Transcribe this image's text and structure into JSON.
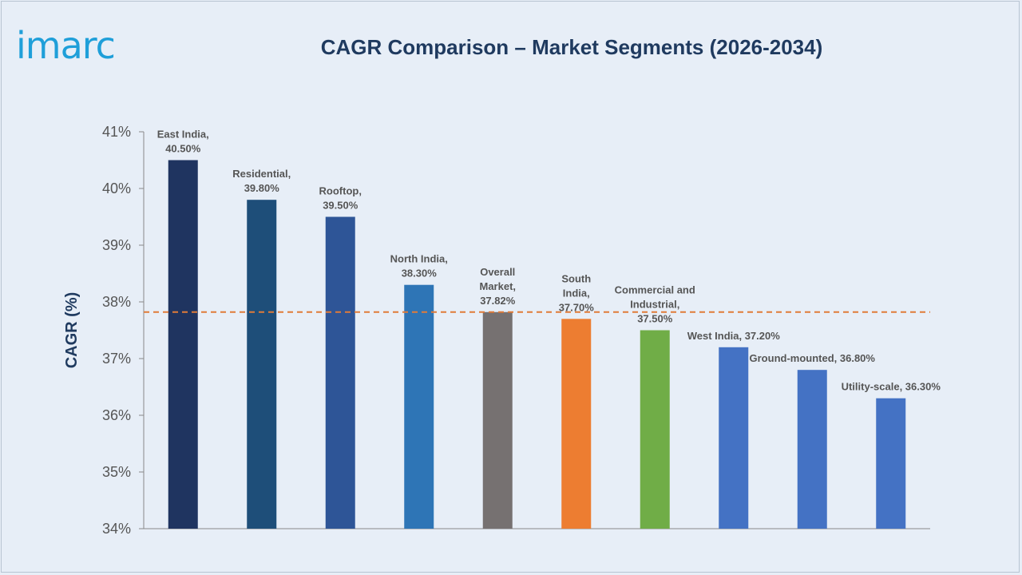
{
  "logo": "imarc",
  "chart_data": {
    "type": "bar",
    "title": "CAGR Comparison – Market Segments (2026-2034)",
    "ylabel": "CAGR (%)",
    "xlabel": "",
    "ylim": [
      34,
      41
    ],
    "yticks": [
      "34%",
      "35%",
      "36%",
      "37%",
      "38%",
      "39%",
      "40%",
      "41%"
    ],
    "reference_line": {
      "value": 37.82,
      "style": "dashed",
      "color": "#e07b39"
    },
    "bars": [
      {
        "label_lines": [
          "East India,",
          "40.50%"
        ],
        "value": 40.5,
        "color": "#1f3460"
      },
      {
        "label_lines": [
          "Residential,",
          "39.80%"
        ],
        "value": 39.8,
        "color": "#1e4e79"
      },
      {
        "label_lines": [
          "Rooftop,",
          "39.50%"
        ],
        "value": 39.5,
        "color": "#2e5597"
      },
      {
        "label_lines": [
          "North India,",
          "38.30%"
        ],
        "value": 38.3,
        "color": "#2e75b6"
      },
      {
        "label_lines": [
          "Overall",
          "Market,",
          "37.82%"
        ],
        "value": 37.82,
        "color": "#767171"
      },
      {
        "label_lines": [
          "South",
          "India,",
          "37.70%"
        ],
        "value": 37.7,
        "color": "#ed7d31"
      },
      {
        "label_lines": [
          "Commercial and",
          "Industrial,",
          "37.50%"
        ],
        "value": 37.5,
        "color": "#70ad47"
      },
      {
        "label_lines": [
          "West India, 37.20%"
        ],
        "value": 37.2,
        "color": "#4472c4"
      },
      {
        "label_lines": [
          "Ground-mounted, 36.80%"
        ],
        "value": 36.8,
        "color": "#4472c4"
      },
      {
        "label_lines": [
          "Utility-scale, 36.30%"
        ],
        "value": 36.3,
        "color": "#4472c4"
      }
    ]
  }
}
